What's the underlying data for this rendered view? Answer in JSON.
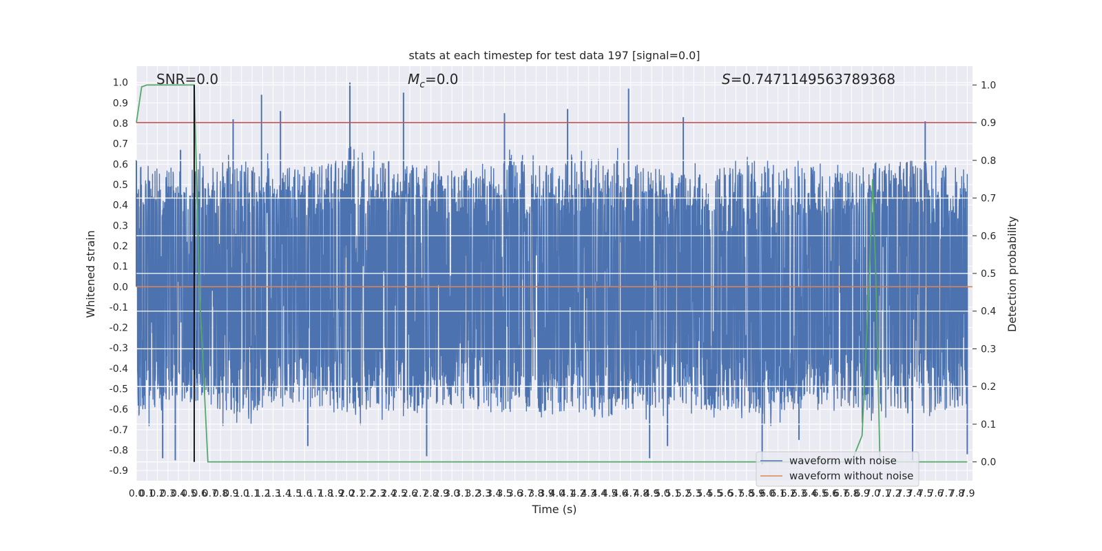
{
  "chart_data": {
    "type": "line",
    "title": "stats at each timestep for test data 197 [signal=0.0]",
    "xlabel": "Time (s)",
    "ylabel_left": "Whitened strain",
    "ylabel_right": "Detection probability",
    "xlim": [
      0.0,
      7.95
    ],
    "ylim_left": [
      -0.95,
      1.08
    ],
    "ylim_right": [
      -0.05,
      1.05
    ],
    "x_ticks": [
      "0.0",
      "0.1",
      "0.2",
      "0.3",
      "0.4",
      "0.5",
      "0.6",
      "0.7",
      "0.8",
      "0.9",
      "1.0",
      "1.1",
      "1.2",
      "1.3",
      "1.4",
      "1.5",
      "1.6",
      "1.7",
      "1.8",
      "1.9",
      "2.0",
      "2.1",
      "2.2",
      "2.3",
      "2.4",
      "2.5",
      "2.6",
      "2.7",
      "2.8",
      "2.9",
      "3.0",
      "3.1",
      "3.2",
      "3.3",
      "3.4",
      "3.5",
      "3.6",
      "3.7",
      "3.8",
      "3.9",
      "4.0",
      "4.1",
      "4.2",
      "4.3",
      "4.4",
      "4.5",
      "4.6",
      "4.7",
      "4.8",
      "4.9",
      "5.0",
      "5.1",
      "5.2",
      "5.3",
      "5.4",
      "5.5",
      "5.6",
      "5.7",
      "5.8",
      "5.9",
      "6.0",
      "6.1",
      "6.2",
      "6.3",
      "6.4",
      "6.5",
      "6.6",
      "6.7",
      "6.8",
      "6.9",
      "7.0",
      "7.1",
      "7.2",
      "7.3",
      "7.4",
      "7.5",
      "7.6",
      "7.7",
      "7.8",
      "7.9"
    ],
    "y_ticks_left": [
      "1.0",
      "0.9",
      "0.8",
      "0.7",
      "0.6",
      "0.5",
      "0.4",
      "0.3",
      "0.2",
      "0.1",
      "0.0",
      "-0.1",
      "-0.2",
      "-0.3",
      "-0.4",
      "-0.5",
      "-0.6",
      "-0.7",
      "-0.8",
      "-0.9"
    ],
    "y_ticks_right": [
      "1.0",
      "0.9",
      "0.8",
      "0.7",
      "0.6",
      "0.5",
      "0.4",
      "0.3",
      "0.2",
      "0.1",
      "0.0"
    ],
    "annotations": {
      "snr": "SNR=0.0",
      "mc_symbol": "M",
      "mc_sub": "c",
      "mc_value": "=0.0",
      "s_symbol": "S",
      "s_value": "=0.7471149563789368"
    },
    "series": [
      {
        "name": "waveform with noise",
        "color": "#4c72b0",
        "axis": "left",
        "envelope_upper": [
          [
            0.0,
            0.6
          ],
          [
            0.5,
            0.55
          ],
          [
            1.0,
            0.6
          ],
          [
            1.5,
            0.55
          ],
          [
            2.0,
            0.6
          ],
          [
            2.5,
            0.58
          ],
          [
            3.0,
            0.55
          ],
          [
            3.5,
            0.6
          ],
          [
            4.0,
            0.58
          ],
          [
            4.5,
            0.6
          ],
          [
            5.0,
            0.55
          ],
          [
            5.5,
            0.58
          ],
          [
            6.0,
            0.6
          ],
          [
            6.5,
            0.55
          ],
          [
            7.0,
            0.58
          ],
          [
            7.5,
            0.6
          ],
          [
            7.9,
            0.55
          ]
        ],
        "envelope_lower": [
          [
            0.0,
            -0.6
          ],
          [
            0.5,
            -0.55
          ],
          [
            1.0,
            -0.6
          ],
          [
            1.5,
            -0.55
          ],
          [
            2.0,
            -0.6
          ],
          [
            2.5,
            -0.58
          ],
          [
            3.0,
            -0.55
          ],
          [
            3.5,
            -0.6
          ],
          [
            4.0,
            -0.58
          ],
          [
            4.5,
            -0.6
          ],
          [
            5.0,
            -0.55
          ],
          [
            5.5,
            -0.58
          ],
          [
            6.0,
            -0.6
          ],
          [
            6.5,
            -0.55
          ],
          [
            7.0,
            -0.58
          ],
          [
            7.5,
            -0.6
          ],
          [
            7.9,
            -0.55
          ]
        ],
        "peaks": [
          [
            0.0,
            0.62
          ],
          [
            0.37,
            -0.85
          ],
          [
            0.42,
            0.67
          ],
          [
            0.92,
            0.82
          ],
          [
            1.19,
            0.94
          ],
          [
            1.37,
            0.86
          ],
          [
            2.03,
            1.0
          ],
          [
            2.54,
            0.95
          ],
          [
            2.76,
            -0.83
          ],
          [
            3.5,
            0.85
          ],
          [
            4.1,
            0.87
          ],
          [
            4.5,
            -0.55
          ],
          [
            4.68,
            0.97
          ],
          [
            4.88,
            -0.84
          ],
          [
            5.2,
            0.83
          ],
          [
            5.05,
            -0.78
          ],
          [
            5.95,
            -0.87
          ],
          [
            6.3,
            -0.75
          ],
          [
            7.38,
            -0.85
          ],
          [
            7.5,
            0.81
          ],
          [
            7.9,
            -0.82
          ],
          [
            0.25,
            -0.84
          ],
          [
            1.63,
            -0.78
          ]
        ]
      },
      {
        "name": "waveform without noise",
        "color": "#dd8452",
        "axis": "left",
        "points": [
          [
            0.0,
            0.0
          ],
          [
            7.95,
            0.0
          ]
        ]
      },
      {
        "name": "detection probability",
        "color": "#55a868",
        "axis": "right",
        "points": [
          [
            0.0,
            0.9
          ],
          [
            0.05,
            0.995
          ],
          [
            0.1,
            1.0
          ],
          [
            0.55,
            1.0
          ],
          [
            0.6,
            0.45
          ],
          [
            0.68,
            0.0
          ],
          [
            6.8,
            0.0
          ],
          [
            6.9,
            0.07
          ],
          [
            6.97,
            0.5
          ],
          [
            7.0,
            0.75
          ],
          [
            7.03,
            0.5
          ],
          [
            7.07,
            0.0
          ],
          [
            7.9,
            0.0
          ]
        ]
      }
    ],
    "threshold_line": {
      "color": "#c44e52",
      "axis": "right",
      "value": 0.9
    },
    "vline": {
      "color": "#000000",
      "x": 0.55,
      "y_from": 0.0,
      "y_to": 1.0,
      "axis": "right"
    },
    "legend_placement": "bottom-right",
    "grid": true
  }
}
